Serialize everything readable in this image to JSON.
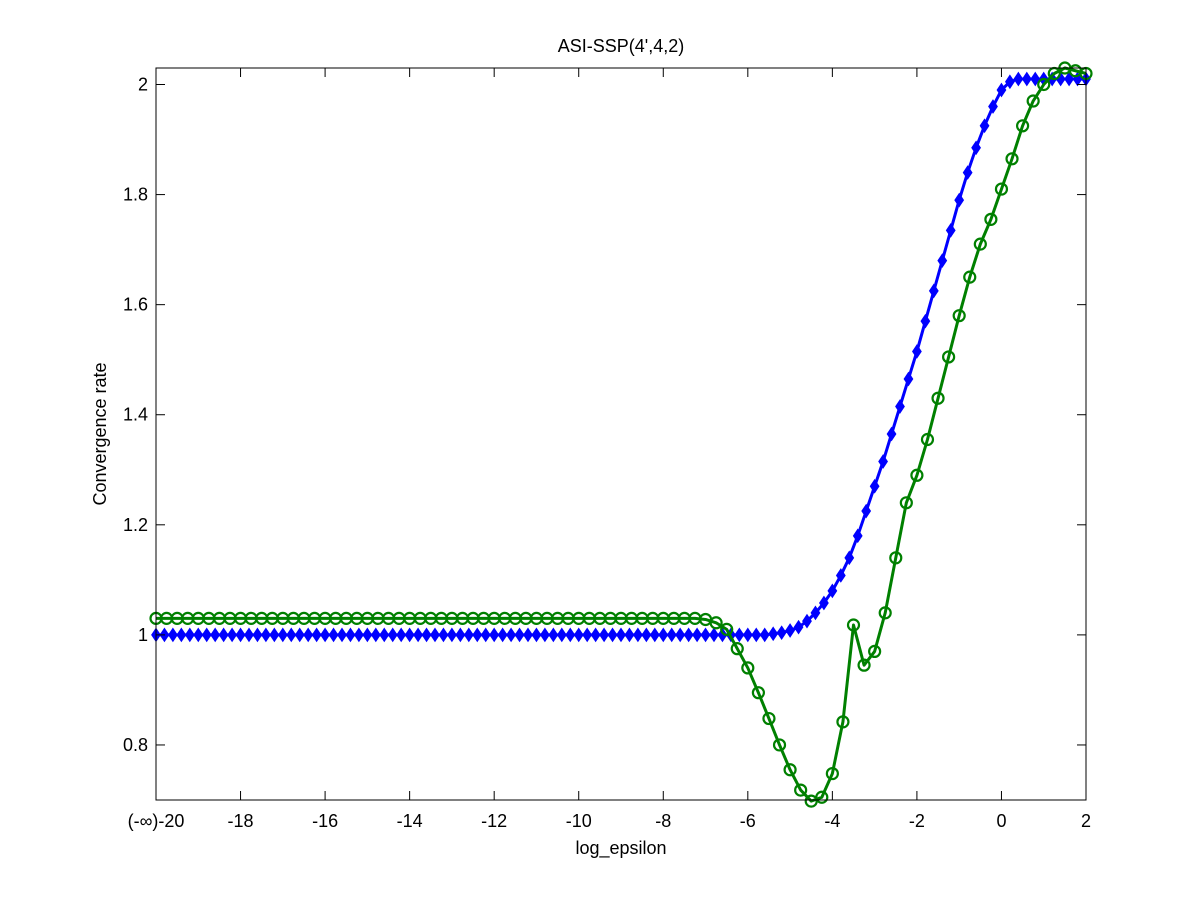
{
  "chart_data": {
    "type": "line",
    "title": "ASI-SSP(4',4,2)",
    "xlabel": "log_epsilon",
    "ylabel": "Convergence rate",
    "xlim": [
      -20,
      2
    ],
    "ylim": [
      0.7,
      2.03
    ],
    "xticks": [
      -20,
      -18,
      -16,
      -14,
      -12,
      -10,
      -8,
      -6,
      -4,
      -2,
      0,
      2
    ],
    "xtick_labels": [
      "(-∞)-20",
      "-18",
      "-16",
      "-14",
      "-12",
      "-10",
      "-8",
      "-6",
      "-4",
      "-2",
      "0",
      "2"
    ],
    "yticks": [
      0.8,
      1.0,
      1.2,
      1.4,
      1.6,
      1.8,
      2.0
    ],
    "ytick_labels": [
      "0.8",
      "1",
      "1.2",
      "1.4",
      "1.6",
      "1.8",
      "2"
    ],
    "grid": false,
    "series": [
      {
        "color": "#0000ff",
        "marker": "diamond",
        "x": [
          -20,
          -19.8,
          -19.6,
          -19.4,
          -19.2,
          -19,
          -18.8,
          -18.6,
          -18.4,
          -18.2,
          -18,
          -17.8,
          -17.6,
          -17.4,
          -17.2,
          -17,
          -16.8,
          -16.6,
          -16.4,
          -16.2,
          -16,
          -15.8,
          -15.6,
          -15.4,
          -15.2,
          -15,
          -14.8,
          -14.6,
          -14.4,
          -14.2,
          -14,
          -13.8,
          -13.6,
          -13.4,
          -13.2,
          -13,
          -12.8,
          -12.6,
          -12.4,
          -12.2,
          -12,
          -11.8,
          -11.6,
          -11.4,
          -11.2,
          -11,
          -10.8,
          -10.6,
          -10.4,
          -10.2,
          -10,
          -9.8,
          -9.6,
          -9.4,
          -9.2,
          -9,
          -8.8,
          -8.6,
          -8.4,
          -8.2,
          -8,
          -7.8,
          -7.6,
          -7.4,
          -7.2,
          -7,
          -6.8,
          -6.6,
          -6.4,
          -6.2,
          -6,
          -5.8,
          -5.6,
          -5.4,
          -5.2,
          -5,
          -4.8,
          -4.6,
          -4.4,
          -4.2,
          -4,
          -3.8,
          -3.6,
          -3.4,
          -3.2,
          -3,
          -2.8,
          -2.6,
          -2.4,
          -2.2,
          -2,
          -1.8,
          -1.6,
          -1.4,
          -1.2,
          -1,
          -0.8,
          -0.6,
          -0.4,
          -0.2,
          0,
          0.2,
          0.4,
          0.6,
          0.8,
          1,
          1.2,
          1.4,
          1.6,
          1.8,
          2
        ],
        "y": [
          1.0,
          1.0,
          1.0,
          1.0,
          1.0,
          1.0,
          1.0,
          1.0,
          1.0,
          1.0,
          1.0,
          1.0,
          1.0,
          1.0,
          1.0,
          1.0,
          1.0,
          1.0,
          1.0,
          1.0,
          1.0,
          1.0,
          1.0,
          1.0,
          1.0,
          1.0,
          1.0,
          1.0,
          1.0,
          1.0,
          1.0,
          1.0,
          1.0,
          1.0,
          1.0,
          1.0,
          1.0,
          1.0,
          1.0,
          1.0,
          1.0,
          1.0,
          1.0,
          1.0,
          1.0,
          1.0,
          1.0,
          1.0,
          1.0,
          1.0,
          1.0,
          1.0,
          1.0,
          1.0,
          1.0,
          1.0,
          1.0,
          1.0,
          1.0,
          1.0,
          1.0,
          1.0,
          1.0,
          1.0,
          1.0,
          1.0,
          1.0,
          1.0,
          1.0,
          1.0,
          1.0,
          1.0,
          1.0,
          1.002,
          1.004,
          1.008,
          1.014,
          1.025,
          1.04,
          1.058,
          1.08,
          1.108,
          1.14,
          1.18,
          1.225,
          1.27,
          1.315,
          1.365,
          1.415,
          1.465,
          1.515,
          1.57,
          1.625,
          1.68,
          1.735,
          1.79,
          1.84,
          1.885,
          1.925,
          1.96,
          1.99,
          2.005,
          2.01,
          2.01,
          2.01,
          2.01,
          2.01,
          2.01,
          2.01,
          2.01,
          2.01
        ]
      },
      {
        "color": "#008000",
        "marker": "circle",
        "x": [
          -20,
          -19.75,
          -19.5,
          -19.25,
          -19,
          -18.75,
          -18.5,
          -18.25,
          -18,
          -17.75,
          -17.5,
          -17.25,
          -17,
          -16.75,
          -16.5,
          -16.25,
          -16,
          -15.75,
          -15.5,
          -15.25,
          -15,
          -14.75,
          -14.5,
          -14.25,
          -14,
          -13.75,
          -13.5,
          -13.25,
          -13,
          -12.75,
          -12.5,
          -12.25,
          -12,
          -11.75,
          -11.5,
          -11.25,
          -11,
          -10.75,
          -10.5,
          -10.25,
          -10,
          -9.75,
          -9.5,
          -9.25,
          -9,
          -8.75,
          -8.5,
          -8.25,
          -8,
          -7.75,
          -7.5,
          -7.25,
          -7,
          -6.75,
          -6.5,
          -6.25,
          -6,
          -5.75,
          -5.5,
          -5.25,
          -5,
          -4.75,
          -4.5,
          -4.25,
          -4,
          -3.75,
          -3.5,
          -3.25,
          -3,
          -2.75,
          -2.5,
          -2.25,
          -2,
          -1.75,
          -1.5,
          -1.25,
          -1,
          -0.75,
          -0.5,
          -0.25,
          0,
          0.25,
          0.5,
          0.75,
          1,
          1.25,
          1.5,
          1.75,
          2
        ],
        "y": [
          1.03,
          1.03,
          1.03,
          1.03,
          1.03,
          1.03,
          1.03,
          1.03,
          1.03,
          1.03,
          1.03,
          1.03,
          1.03,
          1.03,
          1.03,
          1.03,
          1.03,
          1.03,
          1.03,
          1.03,
          1.03,
          1.03,
          1.03,
          1.03,
          1.03,
          1.03,
          1.03,
          1.03,
          1.03,
          1.03,
          1.03,
          1.03,
          1.03,
          1.03,
          1.03,
          1.03,
          1.03,
          1.03,
          1.03,
          1.03,
          1.03,
          1.03,
          1.03,
          1.03,
          1.03,
          1.03,
          1.03,
          1.03,
          1.03,
          1.03,
          1.03,
          1.03,
          1.028,
          1.022,
          1.01,
          0.975,
          0.94,
          0.895,
          0.848,
          0.8,
          0.755,
          0.718,
          0.698,
          0.705,
          0.748,
          0.842,
          1.018,
          0.945,
          0.97,
          1.04,
          1.14,
          1.24,
          1.29,
          1.355,
          1.43,
          1.505,
          1.58,
          1.65,
          1.71,
          1.755,
          1.81,
          1.865,
          1.925,
          1.97,
          2.0,
          2.02,
          2.03,
          2.025,
          2.02
        ]
      }
    ]
  }
}
